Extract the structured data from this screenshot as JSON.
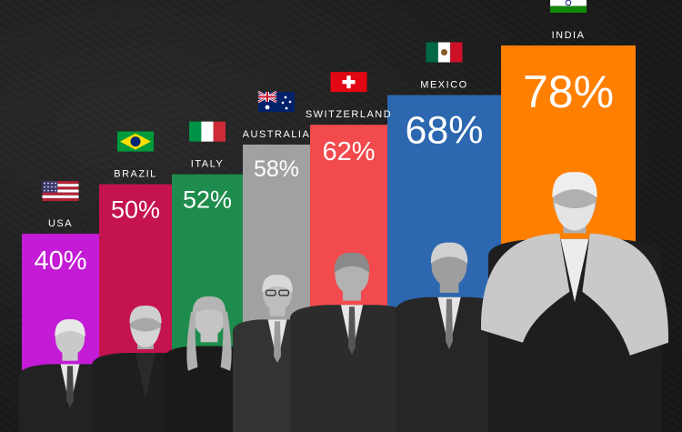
{
  "chart_data": {
    "type": "bar",
    "categories": [
      "USA",
      "BRAZIL",
      "ITALY",
      "AUSTRALIA",
      "SWITZERLAND",
      "MEXICO",
      "INDIA"
    ],
    "values": [
      40,
      50,
      52,
      58,
      62,
      68,
      78
    ],
    "value_labels": [
      "40%",
      "50%",
      "52%",
      "58%",
      "62%",
      "68%",
      "78%"
    ],
    "unit": "%",
    "ylim": [
      0,
      100
    ],
    "grid": false,
    "legend": "none",
    "bar_colors": [
      "#c31bd6",
      "#c4134f",
      "#1e8c4c",
      "#a1a1a1",
      "#f24a4d",
      "#2c67b0",
      "#ff7f00"
    ],
    "flag_icons": [
      "usa-flag-icon",
      "brazil-flag-icon",
      "italy-flag-icon",
      "australia-flag-icon",
      "switzerland-flag-icon",
      "mexico-flag-icon",
      "india-flag-icon"
    ]
  }
}
